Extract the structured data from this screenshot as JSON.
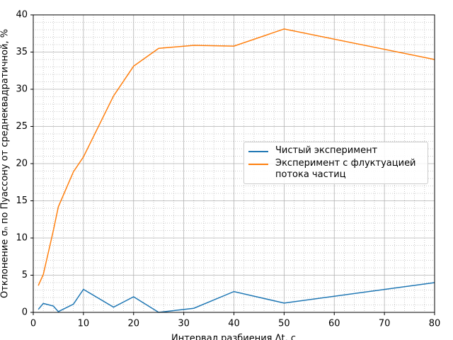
{
  "chart_data": {
    "type": "line",
    "xlabel": "Интервал разбиения Δt, с",
    "ylabel": "Отклонение σₙ по Пуассону от среднеквадратичной, %",
    "series": [
      {
        "name": "Чистый эксперимент",
        "color": "#1f77b4",
        "x": [
          1,
          2,
          4,
          5,
          8,
          10,
          16,
          20,
          25,
          32,
          40,
          50,
          80
        ],
        "values": [
          0.4,
          1.2,
          0.85,
          0.1,
          1.1,
          3.1,
          0.7,
          2.1,
          0.0,
          0.55,
          2.8,
          1.25,
          4.0
        ]
      },
      {
        "name": "Эксперимент с флуктуацией\nпотока частиц",
        "color": "#ff7f0e",
        "x": [
          1,
          2,
          4,
          5,
          8,
          10,
          16,
          20,
          25,
          32,
          40,
          50,
          80
        ],
        "values": [
          3.6,
          5.1,
          11.0,
          14.2,
          18.9,
          20.9,
          29.1,
          33.1,
          35.5,
          35.9,
          35.8,
          38.1,
          34.0
        ]
      }
    ],
    "xlim": [
      0,
      80
    ],
    "ylim": [
      0,
      40
    ],
    "xticks": [
      0,
      10,
      20,
      30,
      40,
      50,
      60,
      70,
      80
    ],
    "yticks": [
      0,
      5,
      10,
      15,
      20,
      25,
      30,
      35,
      40
    ],
    "xminorticks": [
      2,
      4,
      6,
      8,
      12,
      14,
      16,
      18,
      22,
      24,
      26,
      28,
      32,
      34,
      36,
      38,
      42,
      44,
      46,
      48,
      52,
      54,
      56,
      58,
      62,
      64,
      66,
      68,
      72,
      74,
      76,
      78
    ],
    "yminorticks": [
      1,
      2,
      3,
      4,
      6,
      7,
      8,
      9,
      11,
      12,
      13,
      14,
      16,
      17,
      18,
      19,
      21,
      22,
      23,
      24,
      26,
      27,
      28,
      29,
      31,
      32,
      33,
      34,
      36,
      37,
      38,
      39
    ],
    "grid": true,
    "legend": "center right"
  }
}
